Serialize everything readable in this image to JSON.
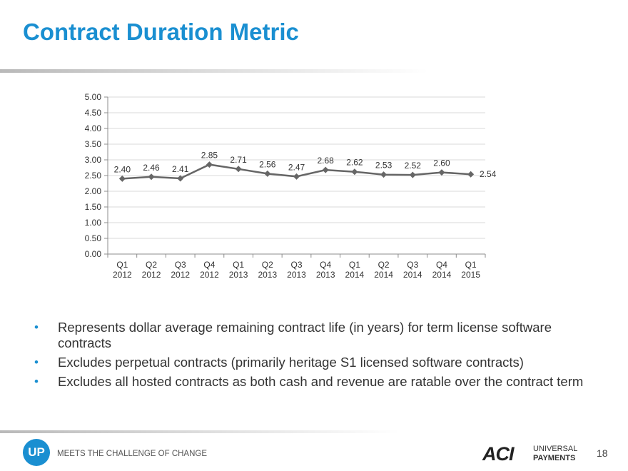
{
  "slide": {
    "title": "Contract Duration Metric"
  },
  "chart_data": {
    "type": "line",
    "categories": [
      "Q1\n2012",
      "Q2\n2012",
      "Q3\n2012",
      "Q4\n2012",
      "Q1\n2013",
      "Q2\n2013",
      "Q3\n2013",
      "Q4\n2013",
      "Q1\n2014",
      "Q2\n2014",
      "Q3\n2014",
      "Q4\n2014",
      "Q1\n2015"
    ],
    "series": [
      {
        "values": [
          2.4,
          2.46,
          2.41,
          2.85,
          2.71,
          2.56,
          2.47,
          2.68,
          2.62,
          2.53,
          2.52,
          2.6,
          2.54
        ]
      }
    ],
    "data_labels": [
      "2.40",
      "2.46",
      "2.41",
      "2.85",
      "2.71",
      "2.56",
      "2.47",
      "2.68",
      "2.62",
      "2.53",
      "2.52",
      "2.60",
      "2.54"
    ],
    "yticks": [
      "0.00",
      "0.50",
      "1.00",
      "1.50",
      "2.00",
      "2.50",
      "3.00",
      "3.50",
      "4.00",
      "4.50",
      "5.00"
    ],
    "ylim": [
      0,
      5
    ],
    "ystep": 0.5,
    "grid": true,
    "legend": "none",
    "line_color": "#666666"
  },
  "bullets": [
    "Represents dollar average remaining contract life (in years) for term license software contracts",
    "Excludes perpetual contracts (primarily heritage S1 licensed software contracts)",
    "Excludes all hosted contracts as both cash and revenue are ratable over the contract term"
  ],
  "footer": {
    "logo_text": "UP",
    "tagline": "MEETS THE CHALLENGE OF CHANGE",
    "aci_logo": "ACI",
    "brand_line1": "UNIVERSAL",
    "brand_line2": "PAYMENTS",
    "page_number": "18"
  },
  "colors": {
    "accent": "#1a8fd1",
    "grid": "#d9d9d9",
    "axis": "#8c8c8c",
    "text": "#333333"
  },
  "icons": {
    "bullet": "bullet-dot-icon"
  }
}
